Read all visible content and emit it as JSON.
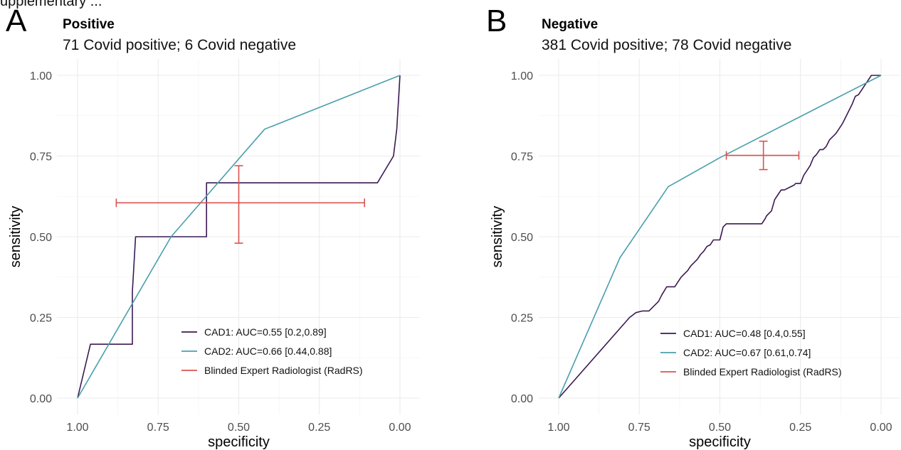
{
  "header_fragment": "upplementary ...",
  "chart_data": [
    {
      "type": "line",
      "panel_label": "A",
      "title": "Positive",
      "subtitle": "71 Covid positive; 6 Covid negative",
      "xlabel": "specificity",
      "ylabel": "sensitivity",
      "xlim": [
        1.0,
        0.0
      ],
      "ylim": [
        0.0,
        1.0
      ],
      "x_reversed": true,
      "xticks": [
        "1.00",
        "0.75",
        "0.50",
        "0.25",
        "0.00"
      ],
      "yticks": [
        "0.00",
        "0.25",
        "0.50",
        "0.75",
        "1.00"
      ],
      "legend_position": "bottom-right",
      "series": [
        {
          "name": "CAD1: AUC=0.55 [0.2,0.89]",
          "color": "#3b1a52",
          "x": [
            1.0,
            0.96,
            0.83,
            0.83,
            0.82,
            0.6,
            0.6,
            0.07,
            0.02,
            0.01,
            0.0
          ],
          "y": [
            0.0,
            0.167,
            0.167,
            0.33,
            0.5,
            0.5,
            0.667,
            0.667,
            0.75,
            0.833,
            1.0
          ]
        },
        {
          "name": "CAD2: AUC=0.66 [0.44,0.88]",
          "color": "#4a9fad",
          "x": [
            1.0,
            0.71,
            0.42,
            0.0
          ],
          "y": [
            0.0,
            0.5,
            0.833,
            1.0
          ]
        }
      ],
      "errorbar": {
        "name": "Blinded Expert Radiologist (RadRS)",
        "color": "#d9534f",
        "x": 0.5,
        "y": 0.605,
        "xmin": 0.11,
        "xmax": 0.88,
        "ymin": 0.48,
        "ymax": 0.72
      }
    },
    {
      "type": "line",
      "panel_label": "B",
      "title": "Negative",
      "subtitle": "381 Covid positive; 78 Covid negative",
      "xlabel": "specificity",
      "ylabel": "sensitivity",
      "xlim": [
        1.0,
        0.0
      ],
      "ylim": [
        0.0,
        1.0
      ],
      "x_reversed": true,
      "xticks": [
        "1.00",
        "0.75",
        "0.50",
        "0.25",
        "0.00"
      ],
      "yticks": [
        "0.00",
        "0.25",
        "0.50",
        "0.75",
        "1.00"
      ],
      "legend_position": "bottom-right",
      "series": [
        {
          "name": "CAD1: AUC=0.48 [0.4,0.55]",
          "color": "#3b1a52",
          "x": [
            1.0,
            0.78,
            0.76,
            0.74,
            0.72,
            0.71,
            0.69,
            0.68,
            0.665,
            0.66,
            0.64,
            0.63,
            0.62,
            0.61,
            0.6,
            0.59,
            0.58,
            0.57,
            0.56,
            0.55,
            0.54,
            0.53,
            0.52,
            0.515,
            0.5,
            0.495,
            0.49,
            0.485,
            0.48,
            0.47,
            0.44,
            0.4,
            0.37,
            0.36,
            0.355,
            0.34,
            0.33,
            0.32,
            0.31,
            0.3,
            0.28,
            0.27,
            0.265,
            0.255,
            0.25,
            0.24,
            0.22,
            0.21,
            0.2,
            0.19,
            0.185,
            0.18,
            0.17,
            0.16,
            0.15,
            0.14,
            0.13,
            0.12,
            0.11,
            0.1,
            0.09,
            0.08,
            0.07,
            0.06,
            0.05,
            0.04,
            0.03,
            0.02,
            0.0
          ],
          "y": [
            0.0,
            0.25,
            0.265,
            0.27,
            0.27,
            0.28,
            0.3,
            0.32,
            0.345,
            0.345,
            0.345,
            0.36,
            0.375,
            0.385,
            0.395,
            0.41,
            0.42,
            0.43,
            0.445,
            0.455,
            0.47,
            0.475,
            0.49,
            0.49,
            0.49,
            0.51,
            0.53,
            0.535,
            0.54,
            0.54,
            0.54,
            0.54,
            0.54,
            0.555,
            0.565,
            0.58,
            0.615,
            0.63,
            0.645,
            0.645,
            0.655,
            0.66,
            0.665,
            0.665,
            0.665,
            0.69,
            0.72,
            0.745,
            0.755,
            0.77,
            0.77,
            0.77,
            0.78,
            0.8,
            0.81,
            0.82,
            0.835,
            0.85,
            0.87,
            0.89,
            0.91,
            0.935,
            0.94,
            0.955,
            0.97,
            0.985,
            1.0,
            1.0,
            1.0
          ]
        },
        {
          "name": "CAD2: AUC=0.67 [0.61,0.74]",
          "color": "#4a9fad",
          "x": [
            1.0,
            0.81,
            0.66,
            0.5,
            0.0
          ],
          "y": [
            0.0,
            0.435,
            0.655,
            0.745,
            1.0
          ]
        }
      ],
      "errorbar": {
        "name": "Blinded Expert Radiologist (RadRS)",
        "color": "#d9534f",
        "x": 0.365,
        "y": 0.752,
        "xmin": 0.255,
        "xmax": 0.48,
        "ymin": 0.708,
        "ymax": 0.796
      }
    }
  ]
}
